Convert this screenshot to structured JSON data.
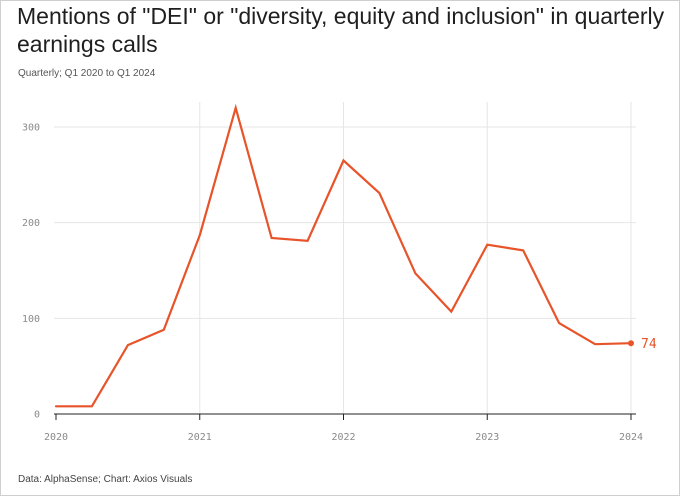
{
  "title": "Mentions of \"DEI\" or \"diversity, equity and inclusion\" in quarterly earnings calls",
  "subtitle": "Quarterly; Q1 2020 to Q1 2024",
  "footer": "Data: AlphaSense; Chart: Axios Visuals",
  "colors": {
    "line": "#e8542a",
    "grid": "#e6e6e6",
    "axis": "#222222"
  },
  "chart_data": {
    "type": "line",
    "title": "Mentions of \"DEI\" or \"diversity, equity and inclusion\" in quarterly earnings calls",
    "subtitle": "Quarterly; Q1 2020 to Q1 2024",
    "xlabel": "",
    "ylabel": "",
    "grid": true,
    "x": [
      "2020 Q1",
      "2020 Q2",
      "2020 Q3",
      "2020 Q4",
      "2021 Q1",
      "2021 Q2",
      "2021 Q3",
      "2021 Q4",
      "2022 Q1",
      "2022 Q2",
      "2022 Q3",
      "2022 Q4",
      "2023 Q1",
      "2023 Q2",
      "2023 Q3",
      "2023 Q4",
      "2024 Q1"
    ],
    "values": [
      8,
      8,
      72,
      88,
      187,
      320,
      184,
      181,
      265,
      231,
      147,
      107,
      177,
      171,
      95,
      73,
      74
    ],
    "ylim": [
      0,
      330
    ],
    "yticks": [
      0,
      100,
      200,
      300
    ],
    "xticks": [
      "2020",
      "2021",
      "2022",
      "2023",
      "2024"
    ],
    "end_label": "74"
  }
}
